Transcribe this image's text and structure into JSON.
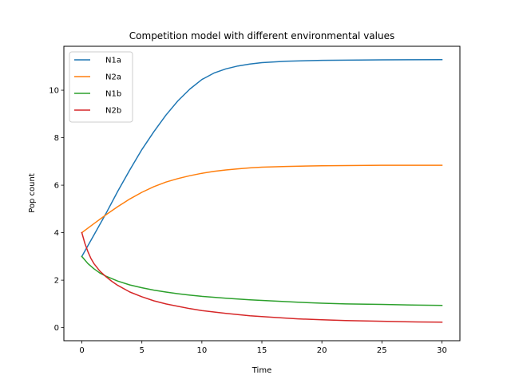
{
  "chart_data": {
    "type": "line",
    "title": "Competition model with different environmental values",
    "xlabel": "Time",
    "ylabel": "Pop count",
    "xlim": [
      -1.5,
      31.5
    ],
    "ylim": [
      -0.55,
      11.85
    ],
    "xticks": [
      0,
      5,
      10,
      15,
      20,
      25,
      30
    ],
    "yticks": [
      0,
      2,
      4,
      6,
      8,
      10
    ],
    "grid": false,
    "legend_position": "top-left",
    "series": [
      {
        "name": "N1a",
        "color": "#1f77b4",
        "x": [
          0,
          1,
          2,
          3,
          4,
          5,
          6,
          7,
          8,
          9,
          10,
          11,
          12,
          13,
          14,
          15,
          17,
          20,
          25,
          30
        ],
        "y": [
          3.0,
          3.9,
          4.8,
          5.75,
          6.65,
          7.5,
          8.25,
          8.95,
          9.55,
          10.05,
          10.45,
          10.72,
          10.9,
          11.02,
          11.1,
          11.16,
          11.22,
          11.26,
          11.28,
          11.29
        ]
      },
      {
        "name": "N2a",
        "color": "#ff7f0e",
        "x": [
          0,
          1,
          2,
          3,
          4,
          5,
          6,
          7,
          8,
          9,
          10,
          11,
          12,
          13,
          14,
          15,
          17,
          20,
          25,
          30
        ],
        "y": [
          4.0,
          4.38,
          4.75,
          5.1,
          5.42,
          5.7,
          5.94,
          6.13,
          6.28,
          6.4,
          6.5,
          6.58,
          6.64,
          6.69,
          6.73,
          6.76,
          6.79,
          6.82,
          6.84,
          6.84
        ]
      },
      {
        "name": "N1b",
        "color": "#2ca02c",
        "x": [
          0,
          0.5,
          1,
          1.5,
          2,
          3,
          4,
          5,
          6,
          7,
          8,
          9,
          10,
          12,
          14,
          16,
          18,
          20,
          22,
          25,
          28,
          30
        ],
        "y": [
          3.0,
          2.7,
          2.48,
          2.3,
          2.17,
          1.96,
          1.8,
          1.68,
          1.58,
          1.5,
          1.43,
          1.37,
          1.32,
          1.24,
          1.17,
          1.12,
          1.07,
          1.03,
          1.0,
          0.98,
          0.95,
          0.94
        ]
      },
      {
        "name": "N2b",
        "color": "#d62728",
        "x": [
          0,
          0.25,
          0.5,
          0.75,
          1,
          1.5,
          2,
          2.5,
          3,
          4,
          5,
          6,
          7,
          8,
          9,
          10,
          12,
          14,
          16,
          18,
          20,
          22,
          25,
          28,
          30
        ],
        "y": [
          4.0,
          3.55,
          3.2,
          2.92,
          2.7,
          2.38,
          2.15,
          1.95,
          1.78,
          1.5,
          1.3,
          1.13,
          1.0,
          0.9,
          0.8,
          0.72,
          0.6,
          0.5,
          0.43,
          0.37,
          0.33,
          0.3,
          0.27,
          0.24,
          0.23
        ]
      }
    ]
  }
}
